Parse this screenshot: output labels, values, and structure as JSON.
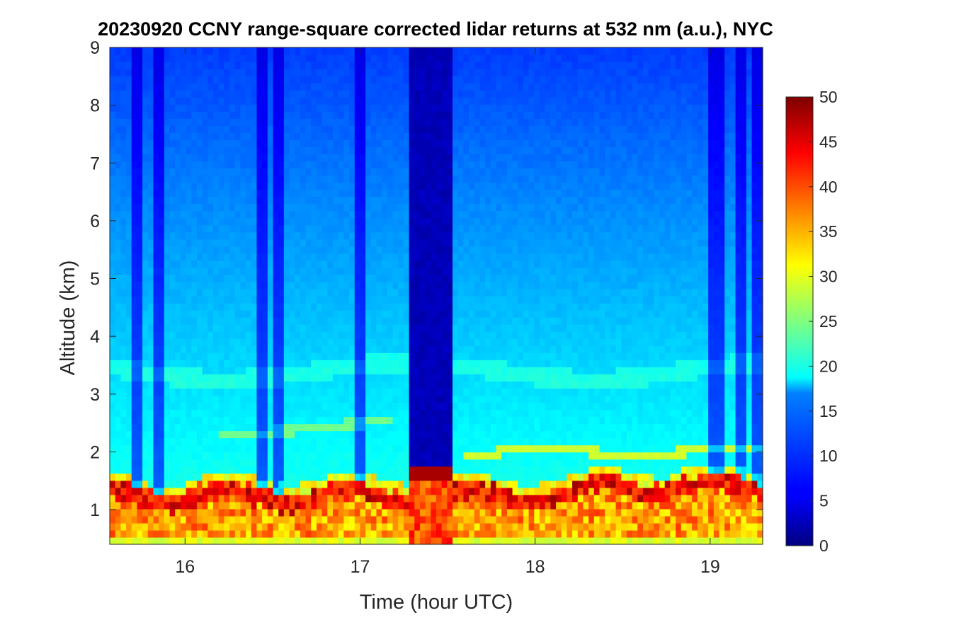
{
  "chart_data": {
    "type": "heatmap",
    "title": "20230920 CCNY range-square corrected lidar returns at 532 nm (a.u.), NYC",
    "xlabel": "Time (hour UTC)",
    "ylabel": "Altitude (km)",
    "xlim": [
      15.57,
      19.3
    ],
    "ylim": [
      0.4,
      9
    ],
    "x_ticks": [
      16,
      17,
      18,
      19
    ],
    "y_ticks": [
      1,
      2,
      3,
      4,
      5,
      6,
      7,
      8,
      9
    ],
    "colorbar": {
      "colormap": "jet",
      "clim": [
        0,
        50
      ],
      "ticks": [
        0,
        5,
        10,
        15,
        20,
        25,
        30,
        35,
        40,
        45,
        50
      ]
    },
    "boundary_layer_top_km": 1.5,
    "features": [
      {
        "description": "low-signal vertical gap",
        "x_range": [
          17.28,
          17.53
        ],
        "value": 2
      },
      {
        "description": "aerosol layer",
        "y_km": 3.3,
        "value": 19
      },
      {
        "description": "elevated aerosol layer",
        "y_km": 2.0,
        "value": 32
      }
    ]
  }
}
